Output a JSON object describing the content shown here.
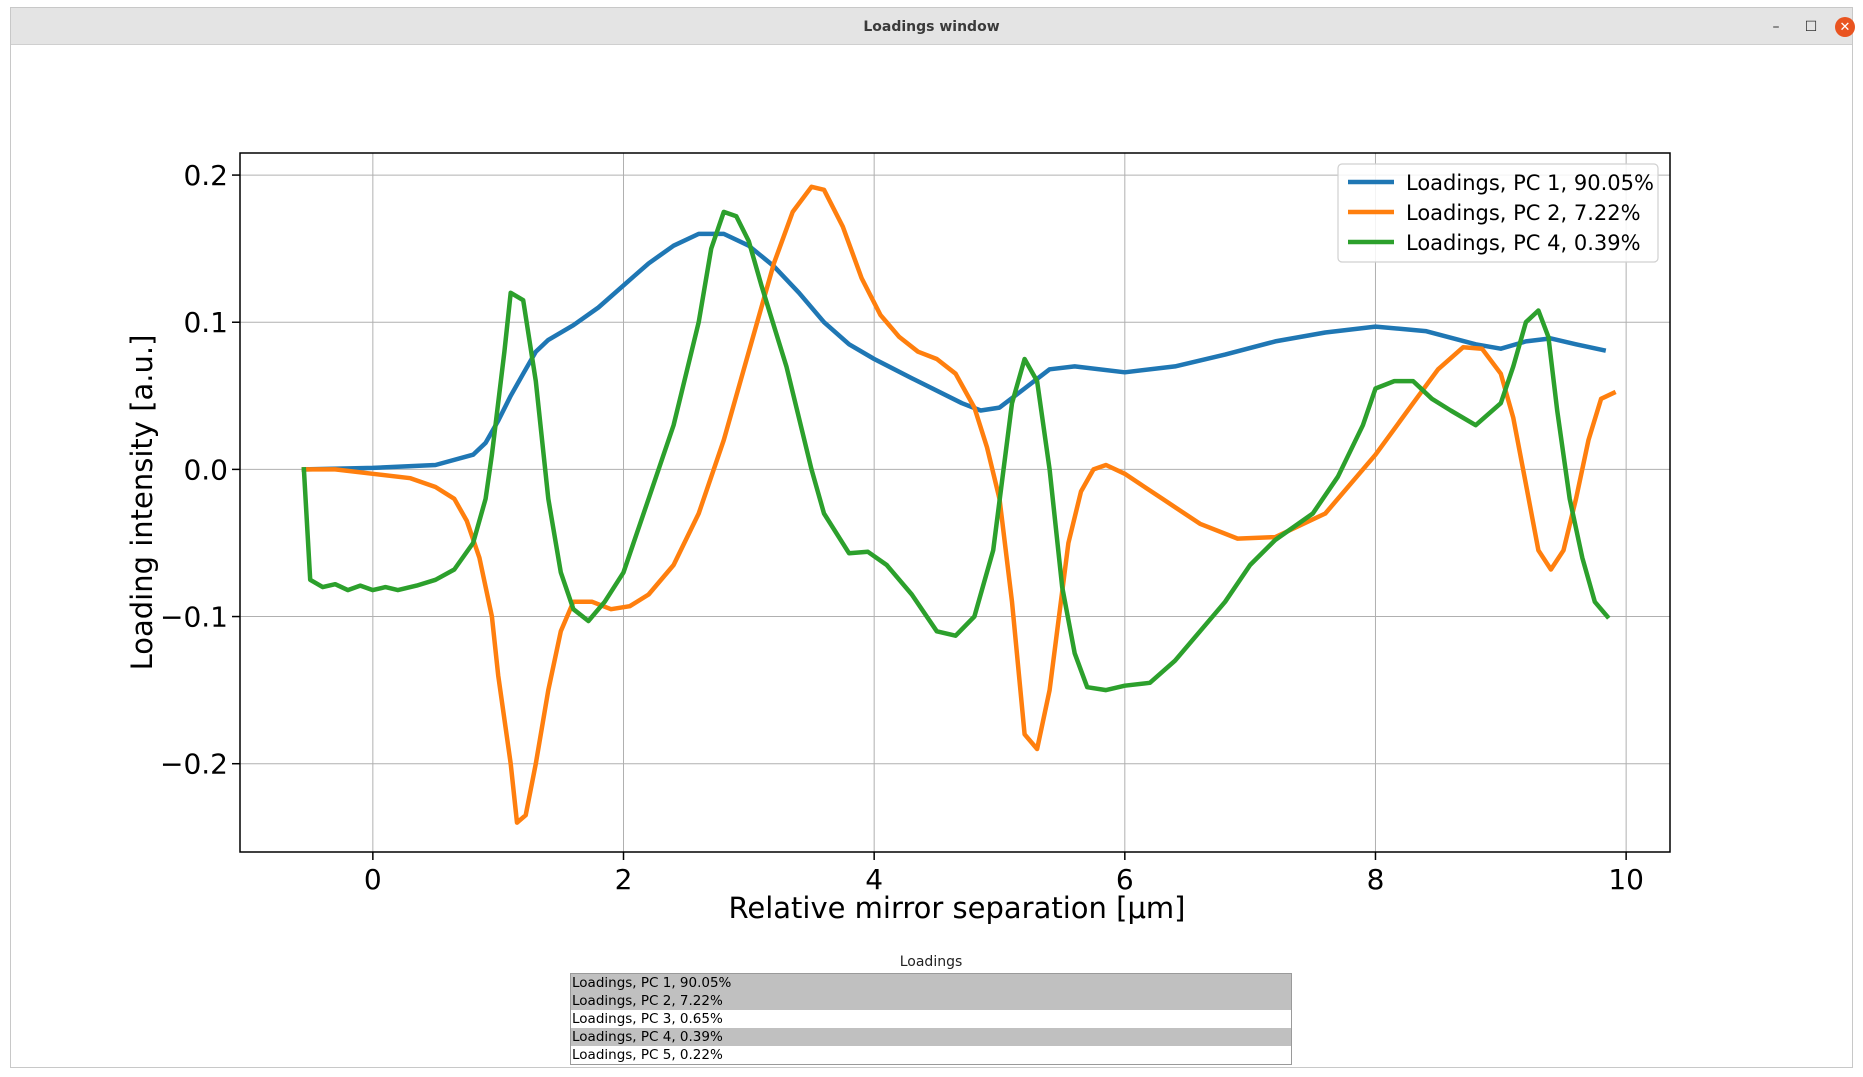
{
  "window": {
    "title": "Loadings window",
    "minimize_glyph": "–",
    "maximize_glyph": "☐",
    "close_glyph": "✕",
    "close_color": "#e95420"
  },
  "chart_data": {
    "type": "line",
    "title": "",
    "xlabel": "Relative mirror separation [μm]",
    "ylabel": "Loading intensity [a.u.]",
    "xlim": [
      -1.06,
      10.35
    ],
    "ylim": [
      -0.26,
      0.215
    ],
    "xticks": [
      0,
      2,
      4,
      6,
      8,
      10
    ],
    "xtick_labels": [
      "0",
      "2",
      "4",
      "6",
      "8",
      "10"
    ],
    "yticks": [
      -0.2,
      -0.1,
      0.0,
      0.1,
      0.2
    ],
    "ytick_labels": [
      "−0.2",
      "−0.1",
      "0.0",
      "0.1",
      "0.2"
    ],
    "grid": true,
    "legend_position": "top-right",
    "series": [
      {
        "name": "Loadings, PC 1, 90.05%",
        "color": "#1f77b4",
        "points": [
          [
            -0.55,
            0.0
          ],
          [
            0.0,
            0.001
          ],
          [
            0.5,
            0.003
          ],
          [
            0.8,
            0.01
          ],
          [
            0.9,
            0.018
          ],
          [
            1.0,
            0.033
          ],
          [
            1.1,
            0.05
          ],
          [
            1.2,
            0.065
          ],
          [
            1.3,
            0.08
          ],
          [
            1.4,
            0.088
          ],
          [
            1.6,
            0.098
          ],
          [
            1.8,
            0.11
          ],
          [
            2.0,
            0.125
          ],
          [
            2.2,
            0.14
          ],
          [
            2.4,
            0.152
          ],
          [
            2.6,
            0.16
          ],
          [
            2.8,
            0.16
          ],
          [
            3.0,
            0.152
          ],
          [
            3.2,
            0.138
          ],
          [
            3.4,
            0.12
          ],
          [
            3.6,
            0.1
          ],
          [
            3.8,
            0.085
          ],
          [
            4.0,
            0.075
          ],
          [
            4.3,
            0.062
          ],
          [
            4.7,
            0.045
          ],
          [
            4.85,
            0.04
          ],
          [
            5.0,
            0.042
          ],
          [
            5.2,
            0.055
          ],
          [
            5.4,
            0.068
          ],
          [
            5.6,
            0.07
          ],
          [
            6.0,
            0.066
          ],
          [
            6.4,
            0.07
          ],
          [
            6.8,
            0.078
          ],
          [
            7.2,
            0.087
          ],
          [
            7.6,
            0.093
          ],
          [
            8.0,
            0.097
          ],
          [
            8.4,
            0.094
          ],
          [
            8.8,
            0.085
          ],
          [
            9.0,
            0.082
          ],
          [
            9.2,
            0.087
          ],
          [
            9.4,
            0.089
          ],
          [
            9.6,
            0.085
          ],
          [
            9.82,
            0.081
          ]
        ]
      },
      {
        "name": "Loadings, PC 2, 7.22%",
        "color": "#ff7f0e",
        "points": [
          [
            -0.55,
            0.0
          ],
          [
            -0.3,
            0.0
          ],
          [
            0.0,
            -0.003
          ],
          [
            0.3,
            -0.006
          ],
          [
            0.5,
            -0.012
          ],
          [
            0.65,
            -0.02
          ],
          [
            0.75,
            -0.035
          ],
          [
            0.85,
            -0.06
          ],
          [
            0.95,
            -0.1
          ],
          [
            1.0,
            -0.14
          ],
          [
            1.1,
            -0.2
          ],
          [
            1.15,
            -0.24
          ],
          [
            1.22,
            -0.235
          ],
          [
            1.3,
            -0.2
          ],
          [
            1.4,
            -0.15
          ],
          [
            1.5,
            -0.11
          ],
          [
            1.6,
            -0.09
          ],
          [
            1.75,
            -0.09
          ],
          [
            1.9,
            -0.095
          ],
          [
            2.05,
            -0.093
          ],
          [
            2.2,
            -0.085
          ],
          [
            2.4,
            -0.065
          ],
          [
            2.6,
            -0.03
          ],
          [
            2.8,
            0.02
          ],
          [
            3.0,
            0.08
          ],
          [
            3.2,
            0.14
          ],
          [
            3.35,
            0.175
          ],
          [
            3.5,
            0.192
          ],
          [
            3.6,
            0.19
          ],
          [
            3.75,
            0.165
          ],
          [
            3.9,
            0.13
          ],
          [
            4.05,
            0.105
          ],
          [
            4.2,
            0.09
          ],
          [
            4.35,
            0.08
          ],
          [
            4.5,
            0.075
          ],
          [
            4.65,
            0.065
          ],
          [
            4.8,
            0.042
          ],
          [
            4.9,
            0.015
          ],
          [
            5.0,
            -0.02
          ],
          [
            5.1,
            -0.09
          ],
          [
            5.2,
            -0.18
          ],
          [
            5.3,
            -0.19
          ],
          [
            5.4,
            -0.15
          ],
          [
            5.55,
            -0.05
          ],
          [
            5.65,
            -0.015
          ],
          [
            5.75,
            0.0
          ],
          [
            5.85,
            0.003
          ],
          [
            6.0,
            -0.003
          ],
          [
            6.3,
            -0.02
          ],
          [
            6.6,
            -0.037
          ],
          [
            6.9,
            -0.047
          ],
          [
            7.2,
            -0.046
          ],
          [
            7.6,
            -0.03
          ],
          [
            8.0,
            0.01
          ],
          [
            8.3,
            0.045
          ],
          [
            8.5,
            0.068
          ],
          [
            8.7,
            0.083
          ],
          [
            8.85,
            0.082
          ],
          [
            9.0,
            0.065
          ],
          [
            9.1,
            0.035
          ],
          [
            9.2,
            -0.01
          ],
          [
            9.3,
            -0.055
          ],
          [
            9.4,
            -0.068
          ],
          [
            9.5,
            -0.055
          ],
          [
            9.6,
            -0.02
          ],
          [
            9.7,
            0.02
          ],
          [
            9.8,
            0.048
          ],
          [
            9.9,
            0.052
          ]
        ]
      },
      {
        "name": "Loadings, PC 4, 0.39%",
        "color": "#2ca02c",
        "points": [
          [
            -0.55,
            0.0
          ],
          [
            -0.5,
            -0.075
          ],
          [
            -0.4,
            -0.08
          ],
          [
            -0.3,
            -0.078
          ],
          [
            -0.2,
            -0.082
          ],
          [
            -0.1,
            -0.079
          ],
          [
            0.0,
            -0.082
          ],
          [
            0.1,
            -0.08
          ],
          [
            0.2,
            -0.082
          ],
          [
            0.35,
            -0.079
          ],
          [
            0.5,
            -0.075
          ],
          [
            0.65,
            -0.068
          ],
          [
            0.8,
            -0.05
          ],
          [
            0.9,
            -0.02
          ],
          [
            0.95,
            0.01
          ],
          [
            1.05,
            0.08
          ],
          [
            1.1,
            0.12
          ],
          [
            1.2,
            0.115
          ],
          [
            1.3,
            0.06
          ],
          [
            1.4,
            -0.02
          ],
          [
            1.5,
            -0.07
          ],
          [
            1.6,
            -0.095
          ],
          [
            1.72,
            -0.103
          ],
          [
            1.85,
            -0.09
          ],
          [
            2.0,
            -0.07
          ],
          [
            2.2,
            -0.02
          ],
          [
            2.4,
            0.03
          ],
          [
            2.6,
            0.1
          ],
          [
            2.7,
            0.15
          ],
          [
            2.8,
            0.175
          ],
          [
            2.9,
            0.172
          ],
          [
            3.0,
            0.155
          ],
          [
            3.1,
            0.125
          ],
          [
            3.3,
            0.07
          ],
          [
            3.5,
            0.0
          ],
          [
            3.6,
            -0.03
          ],
          [
            3.8,
            -0.057
          ],
          [
            3.95,
            -0.056
          ],
          [
            4.1,
            -0.065
          ],
          [
            4.3,
            -0.085
          ],
          [
            4.5,
            -0.11
          ],
          [
            4.65,
            -0.113
          ],
          [
            4.8,
            -0.1
          ],
          [
            4.95,
            -0.055
          ],
          [
            5.1,
            0.045
          ],
          [
            5.2,
            0.075
          ],
          [
            5.3,
            0.06
          ],
          [
            5.4,
            0.0
          ],
          [
            5.5,
            -0.08
          ],
          [
            5.6,
            -0.125
          ],
          [
            5.7,
            -0.148
          ],
          [
            5.85,
            -0.15
          ],
          [
            6.0,
            -0.147
          ],
          [
            6.2,
            -0.145
          ],
          [
            6.4,
            -0.13
          ],
          [
            6.6,
            -0.11
          ],
          [
            6.8,
            -0.09
          ],
          [
            7.0,
            -0.065
          ],
          [
            7.2,
            -0.048
          ],
          [
            7.5,
            -0.03
          ],
          [
            7.7,
            -0.005
          ],
          [
            7.9,
            0.03
          ],
          [
            8.0,
            0.055
          ],
          [
            8.15,
            0.06
          ],
          [
            8.3,
            0.06
          ],
          [
            8.45,
            0.048
          ],
          [
            8.6,
            0.04
          ],
          [
            8.8,
            0.03
          ],
          [
            9.0,
            0.045
          ],
          [
            9.1,
            0.07
          ],
          [
            9.2,
            0.1
          ],
          [
            9.3,
            0.108
          ],
          [
            9.38,
            0.09
          ],
          [
            9.45,
            0.04
          ],
          [
            9.55,
            -0.02
          ],
          [
            9.65,
            -0.06
          ],
          [
            9.75,
            -0.09
          ],
          [
            9.85,
            -0.1
          ]
        ]
      }
    ]
  },
  "list": {
    "caption": "Loadings",
    "items": [
      {
        "label": "Loadings, PC 1, 90.05%",
        "selected": true
      },
      {
        "label": "Loadings, PC 2, 7.22%",
        "selected": true
      },
      {
        "label": "Loadings, PC 3, 0.65%",
        "selected": false
      },
      {
        "label": "Loadings, PC 4, 0.39%",
        "selected": true
      },
      {
        "label": "Loadings, PC 5, 0.22%",
        "selected": false
      }
    ]
  }
}
